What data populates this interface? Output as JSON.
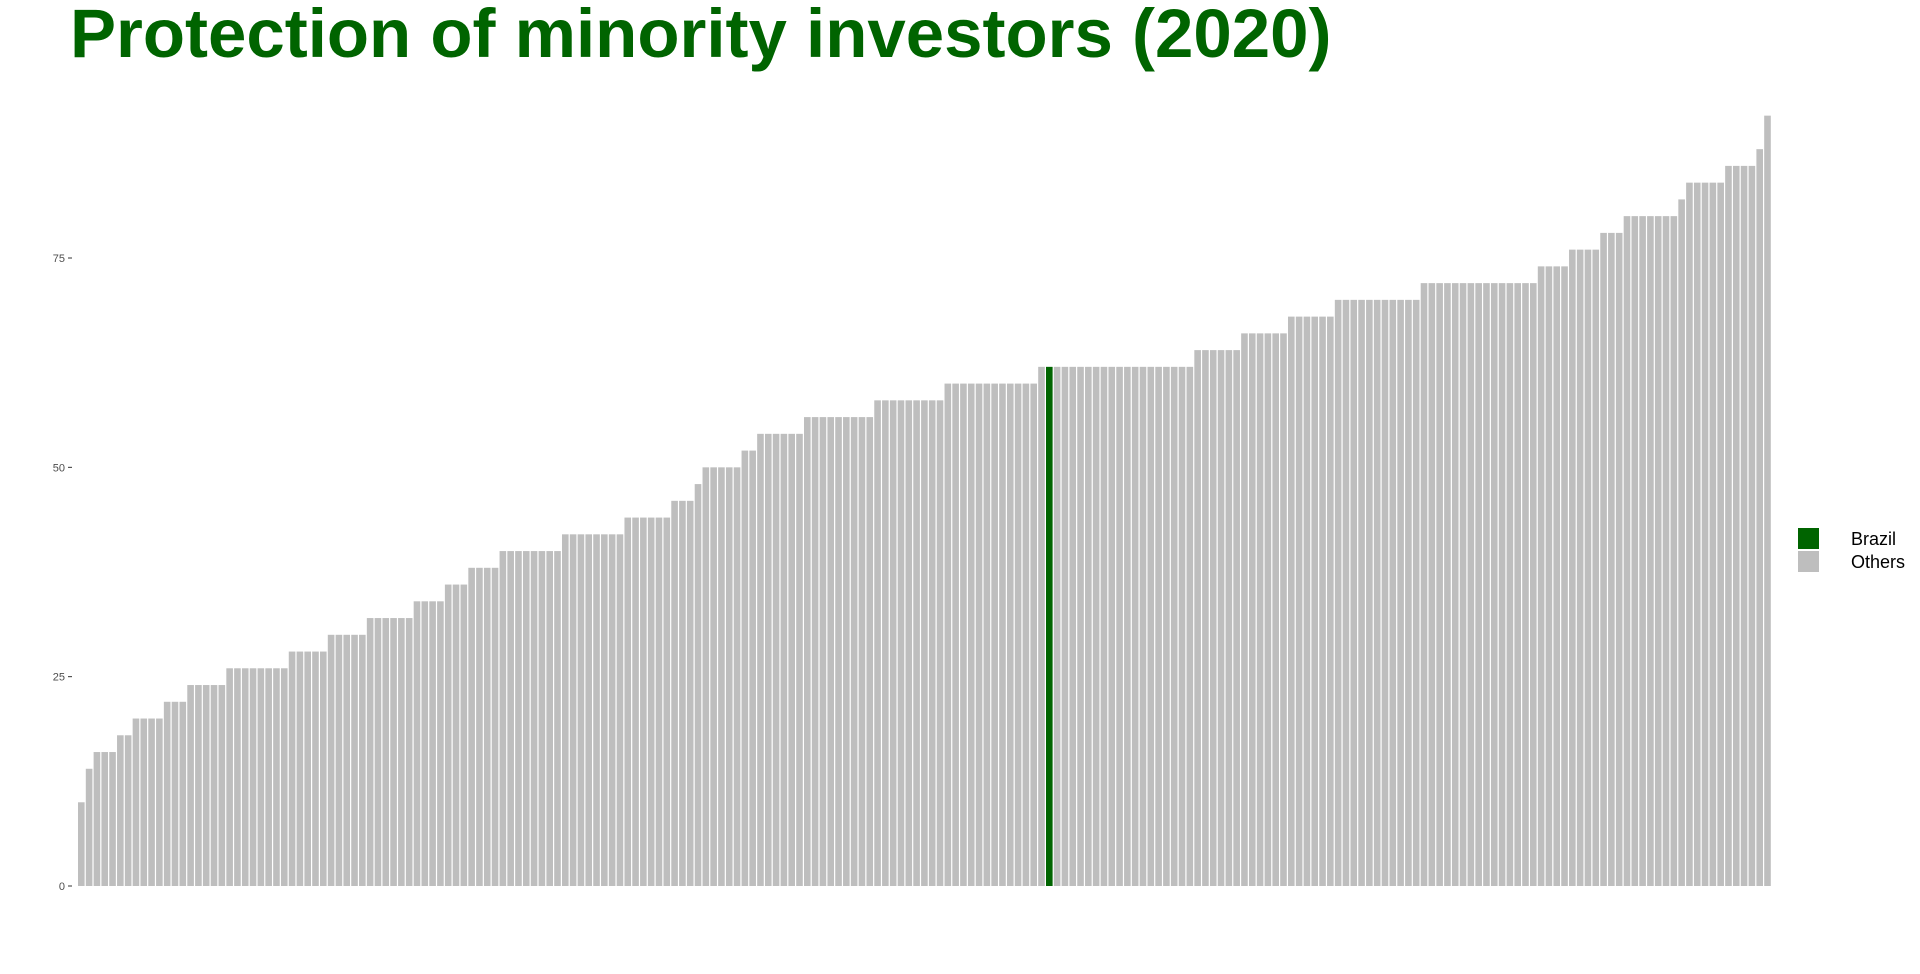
{
  "colors": {
    "highlight": "#006400",
    "others": "#bebebe",
    "title": "#006400"
  },
  "chart_data": {
    "type": "bar",
    "title": "Protection of minority investors (2020)",
    "xlabel": "",
    "ylabel": "",
    "ylim": [
      0,
      95
    ],
    "yticks": [
      "0",
      "25",
      "50",
      "75"
    ],
    "grid": false,
    "legend_position": "right",
    "legend": [
      {
        "label": "Brazil",
        "color": "#006400"
      },
      {
        "label": "Others",
        "color": "#bebebe"
      }
    ],
    "highlight_index": 124,
    "values": [
      10,
      14,
      16,
      16,
      16,
      18,
      18,
      20,
      20,
      20,
      20,
      22,
      22,
      22,
      24,
      24,
      24,
      24,
      24,
      26,
      26,
      26,
      26,
      26,
      26,
      26,
      26,
      28,
      28,
      28,
      28,
      28,
      30,
      30,
      30,
      30,
      30,
      32,
      32,
      32,
      32,
      32,
      32,
      34,
      34,
      34,
      34,
      36,
      36,
      36,
      38,
      38,
      38,
      38,
      40,
      40,
      40,
      40,
      40,
      40,
      40,
      40,
      42,
      42,
      42,
      42,
      42,
      42,
      42,
      42,
      44,
      44,
      44,
      44,
      44,
      44,
      46,
      46,
      46,
      48,
      50,
      50,
      50,
      50,
      50,
      52,
      52,
      54,
      54,
      54,
      54,
      54,
      54,
      56,
      56,
      56,
      56,
      56,
      56,
      56,
      56,
      56,
      58,
      58,
      58,
      58,
      58,
      58,
      58,
      58,
      58,
      60,
      60,
      60,
      60,
      60,
      60,
      60,
      60,
      60,
      60,
      60,
      60,
      62,
      62,
      62,
      62,
      62,
      62,
      62,
      62,
      62,
      62,
      62,
      62,
      62,
      62,
      62,
      62,
      62,
      62,
      62,
      62,
      64,
      64,
      64,
      64,
      64,
      64,
      66,
      66,
      66,
      66,
      66,
      66,
      68,
      68,
      68,
      68,
      68,
      68,
      70,
      70,
      70,
      70,
      70,
      70,
      70,
      70,
      70,
      70,
      70,
      72,
      72,
      72,
      72,
      72,
      72,
      72,
      72,
      72,
      72,
      72,
      72,
      72,
      72,
      72,
      74,
      74,
      74,
      74,
      76,
      76,
      76,
      76,
      78,
      78,
      78,
      80,
      80,
      80,
      80,
      80,
      80,
      80,
      82,
      84,
      84,
      84,
      84,
      84,
      86,
      86,
      86,
      86,
      88,
      92
    ]
  }
}
